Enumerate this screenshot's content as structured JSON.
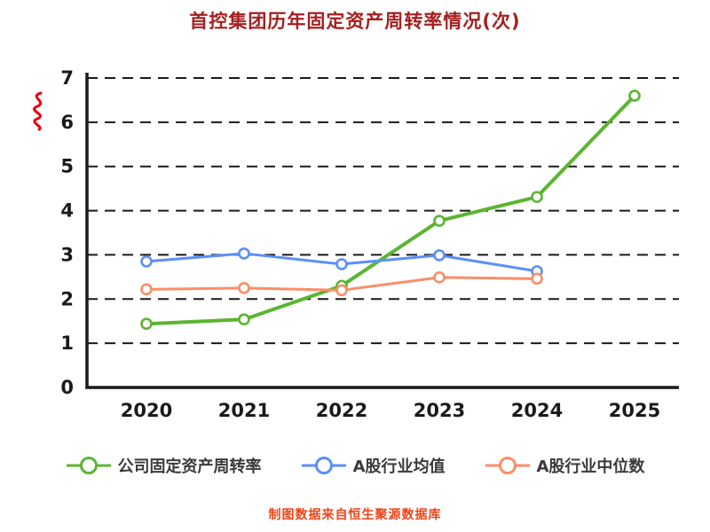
{
  "page": {
    "footer": "制图数据来自恒生聚源数据库"
  },
  "colors": {
    "title": "#a61f1f",
    "footer": "#ee4418",
    "axis": "#1a1a1a",
    "grid": "#1a1a1a",
    "squiggle": "#e60012",
    "company": "#5bb531",
    "industry_avg": "#5b8ff9",
    "industry_median": "#fa8e68"
  },
  "chart_data": {
    "type": "line",
    "title": "首控集团历年固定资产周转率情况(次)",
    "x": [
      2020,
      2021,
      2022,
      2023,
      2024,
      2025
    ],
    "series": [
      {
        "name": "公司固定资产周转率",
        "color_key": "company",
        "values": [
          1.44,
          1.54,
          2.3,
          3.77,
          4.31,
          6.6
        ]
      },
      {
        "name": "A股行业均值",
        "color_key": "industry_avg",
        "values": [
          2.85,
          3.03,
          2.79,
          2.99,
          2.63,
          null
        ]
      },
      {
        "name": "A股行业中位数",
        "color_key": "industry_median",
        "values": [
          2.22,
          2.25,
          2.2,
          2.49,
          2.46,
          null
        ]
      }
    ],
    "ylim": [
      0,
      7
    ],
    "yticks": [
      0,
      1,
      2,
      3,
      4,
      5,
      6,
      7
    ],
    "grid": "horizontal-dashed",
    "legend_position": "bottom",
    "marker": "open-circle"
  }
}
